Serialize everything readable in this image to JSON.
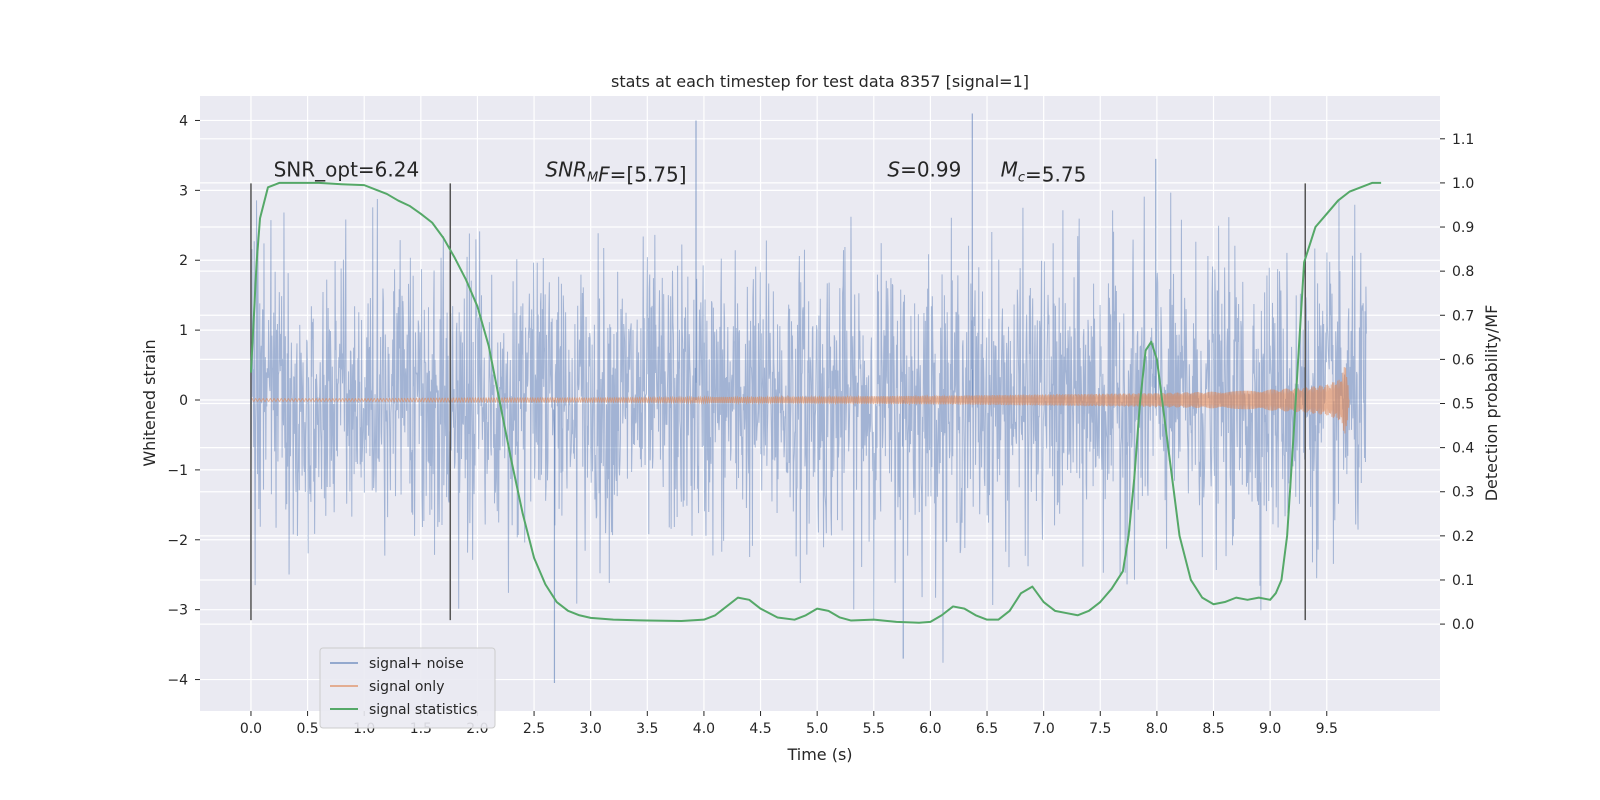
{
  "chart_data": {
    "type": "line",
    "title": "stats at each timestep for test data 8357 [signal=1]",
    "xlabel": "Time (s)",
    "ylabel_left": "Whitened strain",
    "ylabel_right": "Detection probability/MF",
    "xlim": [
      -0.45,
      10.5
    ],
    "ylim_left": [
      -4.45,
      4.35
    ],
    "ylim_right": [
      -0.197,
      1.197
    ],
    "x_ticks": [
      0.0,
      0.5,
      1.0,
      1.5,
      2.0,
      2.5,
      3.0,
      3.5,
      4.0,
      4.5,
      5.0,
      5.5,
      6.0,
      6.5,
      7.0,
      7.5,
      8.0,
      8.5,
      9.0,
      9.5
    ],
    "x_tick_labels": [
      "0.0",
      "0.5",
      "1.0",
      "1.5",
      "2.0",
      "2.5",
      "3.0",
      "3.5",
      "4.0",
      "4.5",
      "5.0",
      "5.5",
      "6.0",
      "6.5",
      "7.0",
      "7.5",
      "8.0",
      "8.5",
      "9.0",
      "9.5"
    ],
    "y_left_ticks": [
      -4,
      -3,
      -2,
      -1,
      0,
      1,
      2,
      3,
      4
    ],
    "y_left_tick_labels": [
      "−4",
      "−3",
      "−2",
      "−1",
      "0",
      "1",
      "2",
      "3",
      "4"
    ],
    "y_right_ticks": [
      0.0,
      0.1,
      0.2,
      0.3,
      0.4,
      0.5,
      0.6,
      0.7,
      0.8,
      0.9,
      1.0,
      1.1
    ],
    "y_right_tick_labels": [
      "0.0",
      "0.1",
      "0.2",
      "0.3",
      "0.4",
      "0.5",
      "0.6",
      "0.7",
      "0.8",
      "0.9",
      "1.0",
      "1.1"
    ],
    "grid": true,
    "legend_position": "lower-left",
    "noise": {
      "duration": 9.85,
      "sigma": 1.0,
      "clip": 4.0,
      "notable_peaks": [
        {
          "x": 3.93,
          "y": 4.0
        },
        {
          "x": 6.37,
          "y": 4.1
        },
        {
          "x": 7.99,
          "y": 3.45
        },
        {
          "x": 2.68,
          "y": -4.05
        },
        {
          "x": 5.76,
          "y": -3.7
        }
      ]
    },
    "signal_envelope": {
      "x": [
        0.0,
        1.0,
        2.0,
        3.0,
        4.0,
        5.0,
        6.0,
        7.0,
        8.0,
        8.5,
        9.0,
        9.3,
        9.5,
        9.62,
        9.67,
        9.7
      ],
      "amp": [
        0.02,
        0.02,
        0.03,
        0.03,
        0.04,
        0.05,
        0.06,
        0.08,
        0.1,
        0.12,
        0.15,
        0.18,
        0.22,
        0.3,
        0.55,
        0.0
      ]
    },
    "vlines": [
      0.0,
      1.76,
      9.31
    ],
    "vline_range": [
      -3.15,
      3.1
    ],
    "series": [
      {
        "name": "signal+ noise",
        "color": "#4c72b0"
      },
      {
        "name": "signal only",
        "color": "#dd8452"
      },
      {
        "name": "signal statistics",
        "color": "#55a868",
        "x": [
          0.0,
          0.05,
          0.08,
          0.15,
          0.25,
          0.4,
          0.6,
          0.8,
          1.0,
          1.1,
          1.2,
          1.3,
          1.4,
          1.5,
          1.6,
          1.7,
          1.8,
          1.9,
          2.0,
          2.1,
          2.2,
          2.3,
          2.4,
          2.5,
          2.6,
          2.7,
          2.8,
          2.9,
          3.0,
          3.2,
          3.5,
          3.8,
          4.0,
          4.1,
          4.2,
          4.3,
          4.4,
          4.5,
          4.65,
          4.8,
          4.9,
          5.0,
          5.1,
          5.2,
          5.3,
          5.5,
          5.7,
          5.9,
          6.0,
          6.1,
          6.2,
          6.3,
          6.4,
          6.5,
          6.6,
          6.7,
          6.8,
          6.9,
          7.0,
          7.1,
          7.2,
          7.3,
          7.4,
          7.5,
          7.6,
          7.7,
          7.75,
          7.8,
          7.85,
          7.9,
          7.95,
          8.0,
          8.05,
          8.1,
          8.2,
          8.3,
          8.4,
          8.5,
          8.6,
          8.7,
          8.8,
          8.9,
          9.0,
          9.05,
          9.1,
          9.15,
          9.2,
          9.3,
          9.4,
          9.5,
          9.6,
          9.7,
          9.8,
          9.9,
          9.98
        ],
        "values": [
          0.57,
          0.82,
          0.92,
          0.99,
          1.0,
          1.0,
          1.0,
          0.997,
          0.995,
          0.985,
          0.975,
          0.96,
          0.948,
          0.93,
          0.91,
          0.875,
          0.83,
          0.78,
          0.72,
          0.63,
          0.5,
          0.37,
          0.25,
          0.15,
          0.09,
          0.05,
          0.03,
          0.02,
          0.014,
          0.01,
          0.008,
          0.007,
          0.01,
          0.02,
          0.04,
          0.06,
          0.055,
          0.035,
          0.015,
          0.01,
          0.02,
          0.035,
          0.03,
          0.015,
          0.008,
          0.01,
          0.005,
          0.003,
          0.005,
          0.02,
          0.04,
          0.035,
          0.02,
          0.01,
          0.01,
          0.03,
          0.07,
          0.085,
          0.05,
          0.03,
          0.025,
          0.02,
          0.03,
          0.05,
          0.08,
          0.12,
          0.2,
          0.33,
          0.5,
          0.62,
          0.64,
          0.6,
          0.5,
          0.4,
          0.2,
          0.1,
          0.06,
          0.045,
          0.05,
          0.06,
          0.055,
          0.06,
          0.055,
          0.07,
          0.1,
          0.2,
          0.4,
          0.82,
          0.9,
          0.93,
          0.96,
          0.98,
          0.99,
          1.0,
          1.0
        ]
      }
    ],
    "annotations": [
      {
        "parts": [
          {
            "text": "SNR_opt=6.24",
            "italic": false
          }
        ],
        "x": 0.2,
        "y": 3.2
      },
      {
        "parts": [
          {
            "text": "SNR",
            "italic": true
          },
          {
            "text": "M",
            "italic": true,
            "sub": true
          },
          {
            "text": "F",
            "italic": true
          },
          {
            "text": "=[5.75]",
            "italic": false
          }
        ],
        "x": 2.6,
        "y": 3.2
      },
      {
        "parts": [
          {
            "text": "S",
            "italic": true
          },
          {
            "text": "=0.99",
            "italic": false
          }
        ],
        "x": 5.62,
        "y": 3.2
      },
      {
        "parts": [
          {
            "text": "M",
            "italic": true
          },
          {
            "text": "c",
            "italic": true,
            "sub": true
          },
          {
            "text": "=5.75",
            "italic": false
          }
        ],
        "x": 6.62,
        "y": 3.2
      }
    ]
  }
}
